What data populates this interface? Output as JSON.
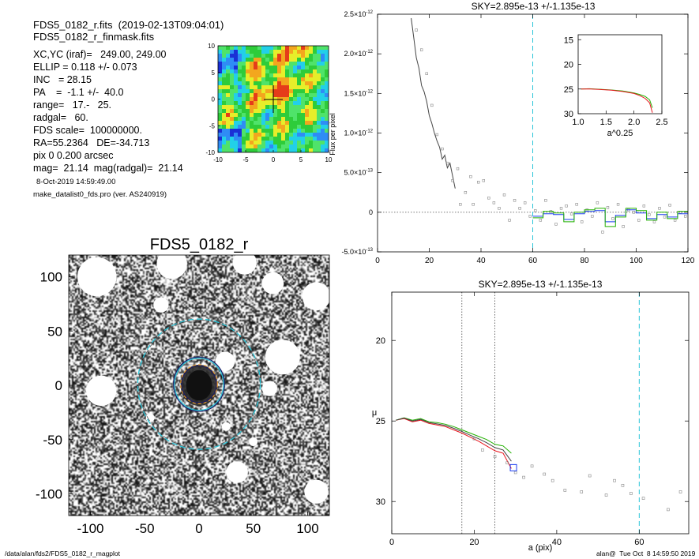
{
  "header": {
    "line1": "FDS5_0182_r.fits  (2019-02-13T09:04:01)",
    "line2": "FDS5_0182_r_finmask.fits",
    "params": [
      "XC,YC (iraf)=   249.00, 249.00",
      "ELLIP = 0.118 +/- 0.073",
      "INC   = 28.15",
      "PA    =  -1.1 +/-  40.0",
      "range=   17.-   25.",
      "radgal=   60.",
      "FDS scale=  100000000.",
      "RA=55.2364   DE=-34.713",
      "pix 0 0.200 arcsec",
      "mag=  21.14  mag(radgal)=  21.14"
    ],
    "date": "8-Oct-2019 14:59:49.00",
    "program": "make_datalist0_fds.pro (ver. AS240919)"
  },
  "footer": {
    "left": "/data/alan/fds2/FDS5_0182_r_magplot",
    "right": "alan@  Tue Oct  8 14:59:50 2019"
  },
  "colors": {
    "sky_line": "#27c4d8",
    "profile_red": "#e8141c",
    "profile_green": "#22b000",
    "profile_blue": "#1a3cf0",
    "ellipse_dark": "#1b1b66",
    "ellipse_orange": "#e89b2a",
    "model_dark": "#444444"
  },
  "chart_data": [
    {
      "name": "contour_map",
      "type": "heatmap",
      "xlim": [
        -10,
        10
      ],
      "ylim": [
        -10,
        10
      ],
      "x_ticks": [
        "-10",
        "-5",
        "0",
        "5",
        "10"
      ],
      "y_ticks": [
        "10",
        "5",
        "0",
        "-5",
        "-10"
      ],
      "colormap": [
        "#1a2fd6",
        "#2f8cf5",
        "#22d0e8",
        "#4fe36a",
        "#2ecc3a",
        "#e6ee2a",
        "#f3a61e",
        "#e53c1a"
      ],
      "peak": [
        0,
        2
      ]
    },
    {
      "name": "galaxy_image",
      "type": "image",
      "title": "FDS5_0182_r",
      "xlim": [
        -120,
        120
      ],
      "ylim": [
        -120,
        120
      ],
      "x_ticks": [
        "-100",
        "-50",
        "0",
        "50",
        "100"
      ],
      "y_ticks": [
        "100",
        "50",
        "0",
        "-50",
        "-100"
      ],
      "ellipse_radii": [
        17,
        25,
        60
      ],
      "masked_regions": [
        {
          "x": -94,
          "y": 100,
          "r": 18
        },
        {
          "x": -25,
          "y": 112,
          "r": 14
        },
        {
          "x": 42,
          "y": 113,
          "r": 11
        },
        {
          "x": 108,
          "y": 82,
          "r": 13
        },
        {
          "x": 68,
          "y": 94,
          "r": 10
        },
        {
          "x": -35,
          "y": 74,
          "r": 7
        },
        {
          "x": 77,
          "y": 26,
          "r": 16
        },
        {
          "x": 24,
          "y": 22,
          "r": 9
        },
        {
          "x": -90,
          "y": -5,
          "r": 14
        },
        {
          "x": 65,
          "y": -3,
          "r": 7
        },
        {
          "x": 35,
          "y": -80,
          "r": 10
        },
        {
          "x": 108,
          "y": -98,
          "r": 11
        },
        {
          "x": 25,
          "y": -38,
          "r": 4
        },
        {
          "x": 50,
          "y": -52,
          "r": 4
        },
        {
          "x": -45,
          "y": -30,
          "r": 4
        }
      ]
    },
    {
      "name": "flux_profile",
      "type": "line",
      "title": "SKY=2.895e-13 +/-1.135e-13",
      "ylabel": "Flux per pixel",
      "xlabel": "",
      "xlim": [
        0,
        120
      ],
      "ylim": [
        -5e-13,
        2.5e-12
      ],
      "x_ticks": [
        0,
        20,
        40,
        60,
        80,
        100,
        120
      ],
      "y_ticks": [
        {
          "v": 2.5e-12,
          "label": "2.5×10",
          "exp": "-12"
        },
        {
          "v": 2e-12,
          "label": "2.0×10",
          "exp": "-12"
        },
        {
          "v": 1.5e-12,
          "label": "1.5×10",
          "exp": "-12"
        },
        {
          "v": 1e-12,
          "label": "1.0×10",
          "exp": "-12"
        },
        {
          "v": 5e-13,
          "label": "5.0×10",
          "exp": "-13"
        },
        {
          "v": 0,
          "label": "0",
          "exp": ""
        },
        {
          "v": -5e-13,
          "label": "-5.0×10",
          "exp": "-13"
        }
      ],
      "sky_radius": 60,
      "series": [
        {
          "kind": "model",
          "x": [
            13,
            14,
            15,
            16,
            17,
            18,
            19,
            20,
            21,
            22,
            23,
            24,
            25,
            26,
            27,
            28,
            29,
            30
          ],
          "y": [
            2.45e-12,
            2.2e-12,
            1.95e-12,
            1.82e-12,
            1.6e-12,
            1.52e-12,
            1.4e-12,
            1.22e-12,
            1.12e-12,
            1e-12,
            9e-13,
            8.2e-13,
            6.7e-13,
            7.2e-13,
            5.6e-13,
            6.2e-13,
            4.6e-13,
            3e-13
          ]
        },
        {
          "kind": "points",
          "x": [
            15,
            17,
            19,
            21,
            23,
            25,
            27,
            29,
            31,
            32,
            34,
            36,
            37,
            39,
            41,
            43,
            45,
            47,
            49,
            51,
            53,
            55,
            57,
            59,
            61,
            63,
            65,
            67,
            69,
            71,
            73,
            75,
            77,
            79,
            81,
            83,
            85,
            87,
            89,
            91,
            93,
            95,
            97,
            99,
            101,
            103,
            105,
            107,
            109,
            111,
            113,
            115,
            117,
            119
          ],
          "y": [
            2.3e-12,
            2.05e-12,
            1.75e-12,
            1.35e-12,
            9.8e-13,
            8e-13,
            6.2e-13,
            4e-13,
            5.5e-13,
            1e-13,
            2.5e-13,
            4.5e-13,
            1e-13,
            3.8e-13,
            4e-13,
            1.8e-13,
            1.2e-13,
            5e-14,
            2.2e-13,
            -1e-13,
            1.5e-13,
            5e-14,
            1.2e-13,
            -5e-14,
            2e-14,
            -1e-13,
            1.5e-13,
            1e-14,
            -1.5e-13,
            5e-14,
            8e-14,
            -2e-14,
            1e-13,
            -1.2e-13,
            3e-14,
            -5e-14,
            1.2e-13,
            -2.5e-13,
            6e-14,
            -8e-14,
            1e-13,
            -1.8e-13,
            3e-14,
            0.0,
            -1e-13,
            8e-14,
            -3e-14,
            -1.2e-13,
            5e-14,
            -6e-14,
            9e-14,
            -1e-13,
            0.0,
            -5e-14
          ]
        },
        {
          "kind": "step_blue",
          "x": [
            60,
            64,
            68,
            72,
            76,
            80,
            84,
            88,
            92,
            96,
            100,
            104,
            108,
            112,
            116,
            120
          ],
          "y": [
            -5e-14,
            -2e-14,
            -3e-14,
            -9e-14,
            -2e-14,
            1e-14,
            2e-14,
            -1.2e-13,
            -4e-14,
            3e-14,
            -1e-14,
            -8e-14,
            -3e-14,
            -6e-14,
            -2e-14,
            -7e-14
          ]
        },
        {
          "kind": "step_green",
          "x": [
            60,
            64,
            68,
            72,
            76,
            80,
            84,
            88,
            92,
            96,
            100,
            104,
            108,
            112,
            116,
            120
          ],
          "y": [
            -7e-14,
            1e-14,
            -1e-14,
            -1.2e-13,
            0.0,
            3e-14,
            5e-14,
            -1.8e-13,
            -6e-14,
            5e-14,
            2e-14,
            -1e-13,
            0.0,
            -8e-14,
            1e-14,
            -4e-14
          ]
        }
      ]
    },
    {
      "name": "inset_profile",
      "type": "line",
      "xlabel": "a^0.25",
      "xlim": [
        1.0,
        2.5
      ],
      "ylim": [
        30,
        14
      ],
      "x_ticks": [
        "1.0",
        "1.5",
        "2.0",
        "2.5"
      ],
      "y_ticks": [
        "15",
        "20",
        "25",
        "30"
      ],
      "series": [
        {
          "name": "green",
          "x": [
            1.05,
            1.2,
            1.4,
            1.6,
            1.8,
            2.0,
            2.1,
            2.2,
            2.28,
            2.33
          ],
          "y": [
            25.0,
            24.95,
            25.05,
            25.2,
            25.4,
            25.8,
            26.1,
            26.5,
            27.2,
            28.8
          ]
        },
        {
          "name": "red",
          "x": [
            1.05,
            1.2,
            1.4,
            1.6,
            1.8,
            2.0,
            2.1,
            2.2,
            2.28,
            2.33
          ],
          "y": [
            25.0,
            24.98,
            25.1,
            25.25,
            25.5,
            25.9,
            26.3,
            26.9,
            27.8,
            29.8
          ]
        }
      ]
    },
    {
      "name": "surface_brightness",
      "type": "line",
      "title": "SKY=2.895e-13 +/-1.135e-13",
      "xlabel": "a (pix)",
      "ylabel": "μ",
      "xlim": [
        0,
        72
      ],
      "ylim": [
        32,
        17
      ],
      "x_ticks": [
        0,
        20,
        40,
        60
      ],
      "y_ticks": [
        20,
        25,
        30
      ],
      "range_lines": [
        17,
        25
      ],
      "sky_radius": 60,
      "series": [
        {
          "name": "red",
          "x": [
            1,
            3,
            5,
            7,
            9,
            11,
            13,
            15,
            17,
            19,
            21,
            23,
            25,
            27,
            29
          ],
          "y": [
            24.95,
            24.85,
            25.05,
            24.95,
            25.15,
            25.25,
            25.35,
            25.55,
            25.75,
            26.0,
            26.25,
            26.55,
            26.85,
            27.0,
            27.95
          ]
        },
        {
          "name": "green",
          "x": [
            1,
            3,
            5,
            7,
            9,
            11,
            13,
            15,
            17,
            19,
            21,
            23,
            25,
            27,
            29
          ],
          "y": [
            24.95,
            24.8,
            24.95,
            24.85,
            25.05,
            25.1,
            25.2,
            25.35,
            25.55,
            25.75,
            25.95,
            26.15,
            26.45,
            26.55,
            27.0
          ]
        },
        {
          "name": "dark",
          "x": [
            1,
            3,
            5,
            7,
            9,
            11,
            13,
            15,
            17,
            19,
            21,
            23,
            25,
            27,
            29
          ],
          "y": [
            24.95,
            24.82,
            25.0,
            24.9,
            25.1,
            25.18,
            25.28,
            25.45,
            25.65,
            25.88,
            26.1,
            26.35,
            26.65,
            26.8,
            27.5
          ]
        },
        {
          "name": "points",
          "x": [
            20,
            22,
            25,
            28,
            30,
            32,
            34,
            37,
            39,
            42,
            46,
            48,
            52,
            54,
            56,
            58,
            61,
            67,
            70
          ],
          "y": [
            26.1,
            26.8,
            27.2,
            27.6,
            28.2,
            28.5,
            27.8,
            28.3,
            28.7,
            29.3,
            29.4,
            28.4,
            29.6,
            28.7,
            29.0,
            29.5,
            29.8,
            30.5,
            29.4
          ]
        }
      ],
      "marker": {
        "x": 29.5,
        "y": 27.9
      }
    }
  ]
}
